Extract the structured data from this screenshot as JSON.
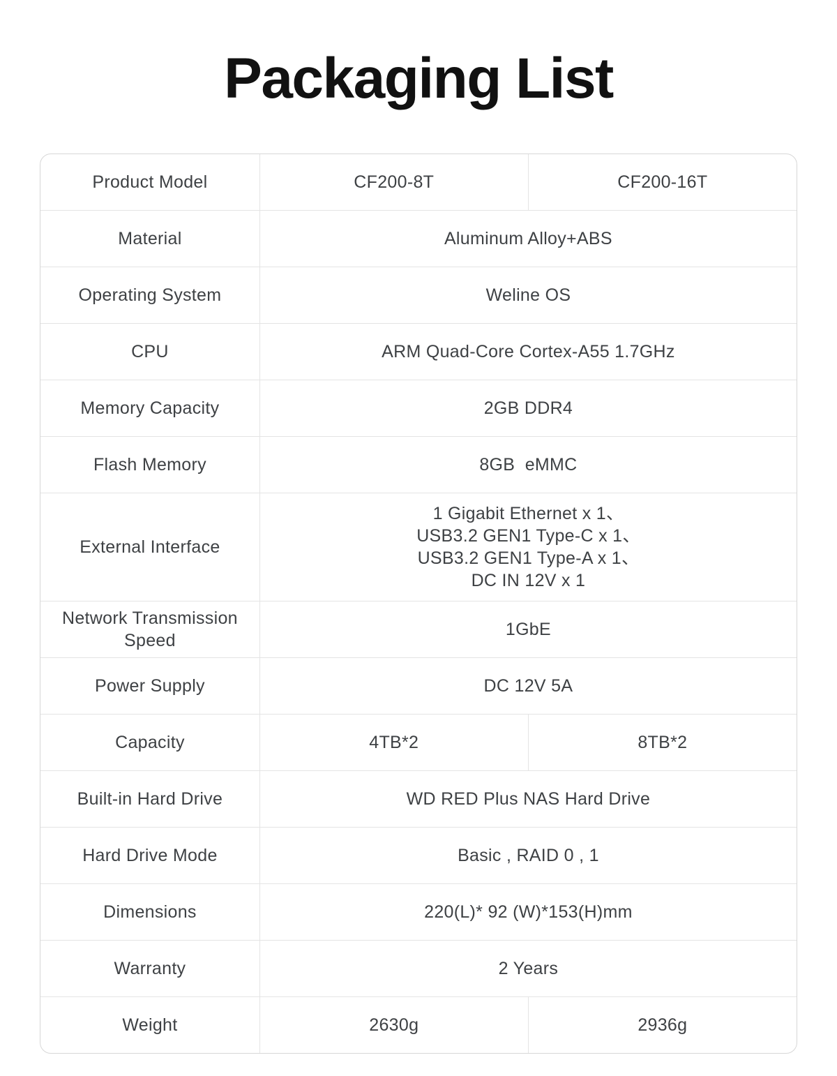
{
  "page": {
    "title": "Packaging List"
  },
  "colors": {
    "title_text": "#111111",
    "body_text": "#3e4144",
    "border_outer": "#d7d7d7",
    "border_inner": "#e4e4e4",
    "background": "#ffffff"
  },
  "table": {
    "rows": [
      {
        "label": "Product Model",
        "values": [
          "CF200-8T",
          "CF200-16T"
        ]
      },
      {
        "label": "Material",
        "value": "Aluminum Alloy+ABS"
      },
      {
        "label": "Operating System",
        "value": "Weline OS"
      },
      {
        "label": "CPU",
        "value": "ARM Quad-Core Cortex-A55 1.7GHz"
      },
      {
        "label": "Memory Capacity",
        "value": "2GB DDR4"
      },
      {
        "label": "Flash Memory",
        "value": "8GB  eMMC"
      },
      {
        "label": "External Interface",
        "value": "1 Gigabit Ethernet x 1、\nUSB3.2 GEN1 Type-C x 1、\nUSB3.2 GEN1 Type-A x 1、\nDC IN 12V x 1"
      },
      {
        "label": "Network Transmission Speed",
        "value": "1GbE"
      },
      {
        "label": "Power Supply",
        "value": "DC 12V 5A"
      },
      {
        "label": "Capacity",
        "values": [
          "4TB*2",
          "8TB*2"
        ]
      },
      {
        "label": "Built-in Hard Drive",
        "value": "WD RED Plus NAS Hard Drive"
      },
      {
        "label": "Hard Drive Mode",
        "value": "Basic , RAID 0 , 1"
      },
      {
        "label": "Dimensions",
        "value": "220(L)* 92 (W)*153(H)mm"
      },
      {
        "label": "Warranty",
        "value": "2 Years"
      },
      {
        "label": "Weight",
        "values": [
          "2630g",
          "2936g"
        ]
      }
    ]
  }
}
